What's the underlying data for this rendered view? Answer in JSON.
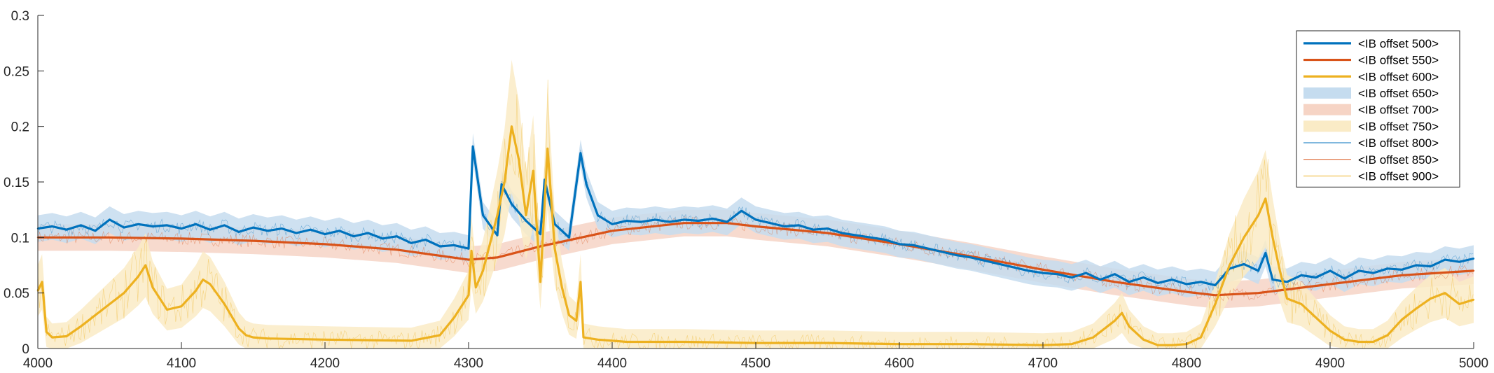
{
  "chart_data": {
    "type": "line",
    "title": "",
    "xlabel": "",
    "ylabel": "",
    "xlim": [
      4000,
      5000
    ],
    "ylim": [
      0,
      0.3
    ],
    "grid": false,
    "legend_placement": "top-right",
    "x_ticks": [
      "4000",
      "4100",
      "4200",
      "4300",
      "4400",
      "4500",
      "4600",
      "4700",
      "4800",
      "4900",
      "5000"
    ],
    "y_ticks": [
      "0",
      "0.05",
      "0.1",
      "0.15",
      "0.2",
      "0.25",
      "0.3"
    ],
    "legend": [
      {
        "label": "<IB offset 500>",
        "style": "thick-line",
        "color": "#0072BD"
      },
      {
        "label": "<IB offset 550>",
        "style": "thick-line",
        "color": "#D95319"
      },
      {
        "label": "<IB offset 600>",
        "style": "thick-line",
        "color": "#EDB120"
      },
      {
        "label": "<IB offset 650>",
        "style": "band",
        "color": "#C5DCEF"
      },
      {
        "label": "<IB offset 700>",
        "style": "band",
        "color": "#F6D4C5"
      },
      {
        "label": "<IB offset 750>",
        "style": "band",
        "color": "#FAEBC6"
      },
      {
        "label": "<IB offset 800>",
        "style": "thin-line",
        "color": "#0072BD"
      },
      {
        "label": "<IB offset 850>",
        "style": "thin-line",
        "color": "#D95319"
      },
      {
        "label": "<IB offset 900>",
        "style": "thin-line",
        "color": "#EDB120"
      }
    ],
    "series": [
      {
        "name": "<IB offset 500>",
        "color": "#0072BD",
        "x": [
          4000,
          4010,
          4020,
          4030,
          4040,
          4050,
          4060,
          4070,
          4080,
          4090,
          4100,
          4110,
          4120,
          4130,
          4140,
          4150,
          4160,
          4170,
          4180,
          4190,
          4200,
          4210,
          4220,
          4230,
          4240,
          4250,
          4260,
          4270,
          4280,
          4290,
          4300,
          4303,
          4310,
          4320,
          4323,
          4330,
          4340,
          4350,
          4353,
          4360,
          4370,
          4378,
          4382,
          4390,
          4400,
          4410,
          4420,
          4430,
          4440,
          4450,
          4460,
          4470,
          4480,
          4490,
          4500,
          4510,
          4520,
          4530,
          4540,
          4550,
          4560,
          4570,
          4580,
          4590,
          4600,
          4610,
          4620,
          4630,
          4640,
          4650,
          4660,
          4670,
          4680,
          4690,
          4700,
          4710,
          4720,
          4730,
          4740,
          4750,
          4760,
          4770,
          4780,
          4790,
          4800,
          4810,
          4820,
          4830,
          4840,
          4850,
          4855,
          4860,
          4870,
          4880,
          4890,
          4900,
          4910,
          4920,
          4930,
          4940,
          4950,
          4960,
          4970,
          4980,
          4990,
          5000
        ],
        "y": [
          0.108,
          0.11,
          0.107,
          0.111,
          0.106,
          0.116,
          0.109,
          0.112,
          0.11,
          0.111,
          0.108,
          0.112,
          0.107,
          0.111,
          0.105,
          0.109,
          0.106,
          0.108,
          0.104,
          0.107,
          0.103,
          0.106,
          0.101,
          0.104,
          0.099,
          0.101,
          0.095,
          0.098,
          0.092,
          0.093,
          0.09,
          0.182,
          0.12,
          0.102,
          0.148,
          0.13,
          0.115,
          0.103,
          0.152,
          0.112,
          0.1,
          0.176,
          0.148,
          0.12,
          0.112,
          0.115,
          0.114,
          0.116,
          0.114,
          0.116,
          0.115,
          0.117,
          0.114,
          0.124,
          0.116,
          0.113,
          0.11,
          0.111,
          0.107,
          0.108,
          0.104,
          0.102,
          0.1,
          0.098,
          0.094,
          0.093,
          0.09,
          0.087,
          0.084,
          0.082,
          0.079,
          0.076,
          0.073,
          0.07,
          0.068,
          0.067,
          0.064,
          0.068,
          0.062,
          0.067,
          0.06,
          0.064,
          0.059,
          0.062,
          0.058,
          0.06,
          0.057,
          0.072,
          0.076,
          0.07,
          0.086,
          0.062,
          0.06,
          0.066,
          0.064,
          0.07,
          0.063,
          0.07,
          0.068,
          0.072,
          0.071,
          0.075,
          0.074,
          0.08,
          0.078,
          0.081
        ]
      },
      {
        "name": "<IB offset 550>",
        "color": "#D95319",
        "x": [
          4000,
          4050,
          4100,
          4150,
          4200,
          4250,
          4300,
          4320,
          4350,
          4400,
          4450,
          4480,
          4500,
          4550,
          4600,
          4650,
          4700,
          4750,
          4800,
          4820,
          4850,
          4900,
          4950,
          5000
        ],
        "y": [
          0.1,
          0.1,
          0.099,
          0.097,
          0.094,
          0.089,
          0.08,
          0.082,
          0.092,
          0.106,
          0.113,
          0.113,
          0.11,
          0.104,
          0.094,
          0.083,
          0.071,
          0.06,
          0.051,
          0.048,
          0.05,
          0.058,
          0.066,
          0.07
        ]
      },
      {
        "name": "<IB offset 600>",
        "color": "#EDB120",
        "x": [
          4000,
          4003,
          4006,
          4010,
          4020,
          4030,
          4040,
          4050,
          4060,
          4070,
          4075,
          4080,
          4090,
          4100,
          4110,
          4115,
          4120,
          4130,
          4140,
          4145,
          4150,
          4160,
          4200,
          4260,
          4280,
          4290,
          4300,
          4302,
          4305,
          4310,
          4315,
          4320,
          4325,
          4330,
          4335,
          4340,
          4345,
          4350,
          4355,
          4360,
          4365,
          4370,
          4375,
          4378,
          4380,
          4385,
          4390,
          4400,
          4410,
          4450,
          4500,
          4550,
          4600,
          4650,
          4700,
          4720,
          4735,
          4750,
          4755,
          4760,
          4770,
          4780,
          4790,
          4800,
          4810,
          4820,
          4830,
          4840,
          4850,
          4855,
          4860,
          4865,
          4870,
          4880,
          4890,
          4900,
          4910,
          4920,
          4930,
          4940,
          4950,
          4960,
          4970,
          4980,
          4990,
          5000
        ],
        "y": [
          0.052,
          0.06,
          0.015,
          0.01,
          0.011,
          0.02,
          0.03,
          0.04,
          0.05,
          0.065,
          0.075,
          0.055,
          0.035,
          0.038,
          0.052,
          0.062,
          0.058,
          0.04,
          0.018,
          0.012,
          0.01,
          0.009,
          0.008,
          0.007,
          0.012,
          0.028,
          0.048,
          0.088,
          0.055,
          0.07,
          0.095,
          0.12,
          0.15,
          0.2,
          0.17,
          0.12,
          0.16,
          0.06,
          0.18,
          0.09,
          0.055,
          0.03,
          0.025,
          0.06,
          0.01,
          0.009,
          0.008,
          0.007,
          0.006,
          0.006,
          0.005,
          0.005,
          0.004,
          0.004,
          0.003,
          0.004,
          0.01,
          0.025,
          0.032,
          0.02,
          0.008,
          0.003,
          0.003,
          0.004,
          0.01,
          0.04,
          0.075,
          0.1,
          0.12,
          0.135,
          0.1,
          0.07,
          0.045,
          0.04,
          0.028,
          0.016,
          0.008,
          0.006,
          0.006,
          0.012,
          0.026,
          0.036,
          0.045,
          0.05,
          0.04,
          0.044
        ]
      }
    ]
  }
}
